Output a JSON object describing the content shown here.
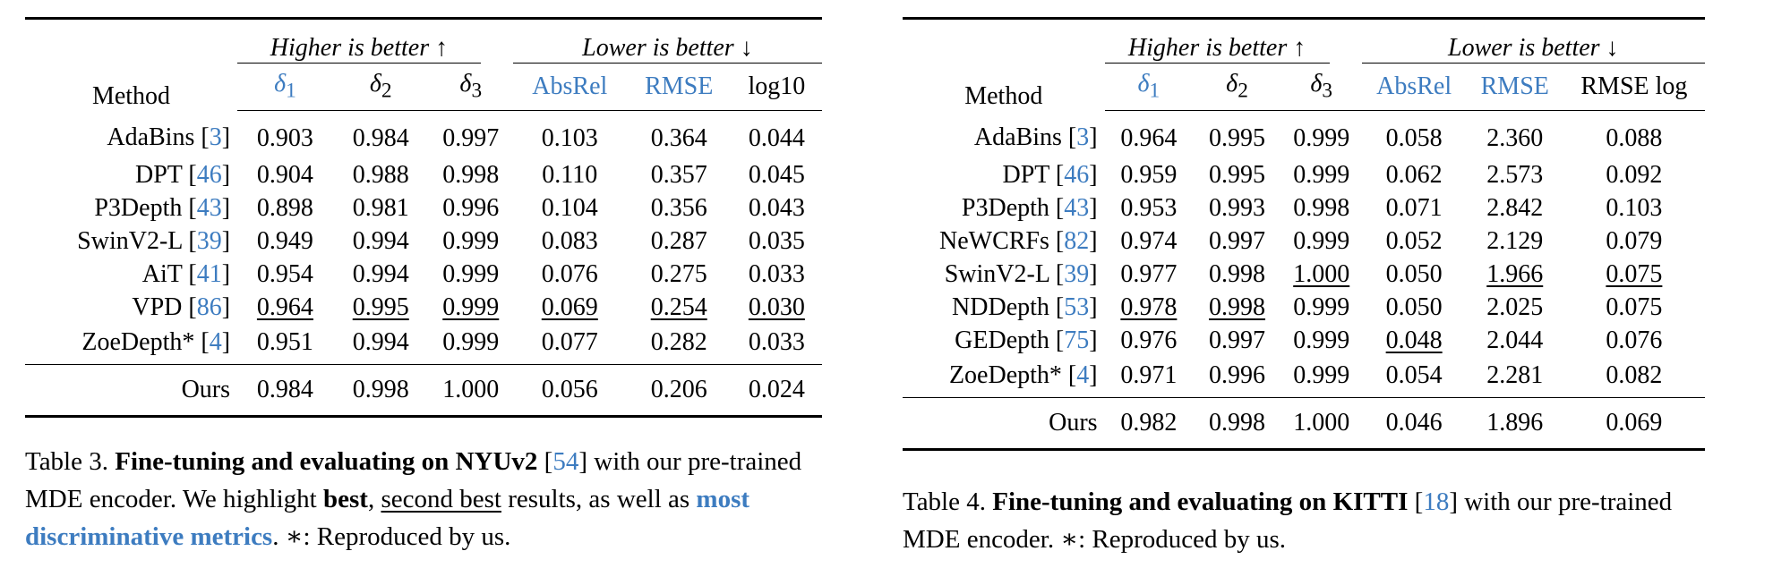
{
  "table3": {
    "method_header": "Method",
    "group_higher": "Higher is better ↑",
    "group_lower": "Lower is better ↓",
    "delta_symbol": "δ",
    "cols": [
      "1",
      "2",
      "3",
      "AbsRel",
      "RMSE",
      "log10"
    ],
    "rows": [
      {
        "name": "AdaBins [",
        "ref": "3",
        "close": "]",
        "vals": [
          "0.903",
          "0.984",
          "0.997",
          "0.103",
          "0.364",
          "0.044"
        ]
      },
      {
        "name": "DPT [",
        "ref": "46",
        "close": "]",
        "vals": [
          "0.904",
          "0.988",
          "0.998",
          "0.110",
          "0.357",
          "0.045"
        ]
      },
      {
        "name": "P3Depth [",
        "ref": "43",
        "close": "]",
        "vals": [
          "0.898",
          "0.981",
          "0.996",
          "0.104",
          "0.356",
          "0.043"
        ]
      },
      {
        "name": "SwinV2-L [",
        "ref": "39",
        "close": "]",
        "vals": [
          "0.949",
          "0.994",
          "0.999",
          "0.083",
          "0.287",
          "0.035"
        ]
      },
      {
        "name": "AiT [",
        "ref": "41",
        "close": "]",
        "vals": [
          "0.954",
          "0.994",
          "0.999",
          "0.076",
          "0.275",
          "0.033"
        ]
      },
      {
        "name": "VPD [",
        "ref": "86",
        "close": "]",
        "vals": [
          "0.964",
          "0.995",
          "0.999",
          "0.069",
          "0.254",
          "0.030"
        ]
      },
      {
        "name": "ZoeDepth* [",
        "ref": "4",
        "close": "]",
        "vals": [
          "0.951",
          "0.994",
          "0.999",
          "0.077",
          "0.282",
          "0.033"
        ]
      }
    ],
    "ours": {
      "name": "Ours",
      "vals": [
        "0.984",
        "0.998",
        "1.000",
        "0.056",
        "0.206",
        "0.024"
      ]
    },
    "caption": {
      "label": "Table 3.",
      "bold_title": "Fine-tuning and evaluating on NYUv2",
      "ref_open": " [",
      "ref": "54",
      "ref_close": "]",
      "text1": " with our pre-trained MDE encoder. We highlight ",
      "best": "best",
      "comma": ", ",
      "second": "second best",
      "text2": " results, as well as ",
      "discrim": "most discriminative metrics",
      "text3": ". ∗: Reproduced by us."
    }
  },
  "table4": {
    "method_header": "Method",
    "group_higher": "Higher is better ↑",
    "group_lower": "Lower is better ↓",
    "delta_symbol": "δ",
    "cols": [
      "1",
      "2",
      "3",
      "AbsRel",
      "RMSE",
      "RMSE log"
    ],
    "rows": [
      {
        "name": "AdaBins [",
        "ref": "3",
        "close": "]",
        "vals": [
          "0.964",
          "0.995",
          "0.999",
          "0.058",
          "2.360",
          "0.088"
        ]
      },
      {
        "name": "DPT [",
        "ref": "46",
        "close": "]",
        "vals": [
          "0.959",
          "0.995",
          "0.999",
          "0.062",
          "2.573",
          "0.092"
        ]
      },
      {
        "name": "P3Depth [",
        "ref": "43",
        "close": "]",
        "vals": [
          "0.953",
          "0.993",
          "0.998",
          "0.071",
          "2.842",
          "0.103"
        ]
      },
      {
        "name": "NeWCRFs [",
        "ref": "82",
        "close": "]",
        "vals": [
          "0.974",
          "0.997",
          "0.999",
          "0.052",
          "2.129",
          "0.079"
        ]
      },
      {
        "name": "SwinV2-L [",
        "ref": "39",
        "close": "]",
        "vals": [
          "0.977",
          "0.998",
          "1.000",
          "0.050",
          "1.966",
          "0.075"
        ]
      },
      {
        "name": "NDDepth [",
        "ref": "53",
        "close": "]",
        "vals": [
          "0.978",
          "0.998",
          "0.999",
          "0.050",
          "2.025",
          "0.075"
        ]
      },
      {
        "name": "GEDepth [",
        "ref": "75",
        "close": "]",
        "vals": [
          "0.976",
          "0.997",
          "0.999",
          "0.048",
          "2.044",
          "0.076"
        ]
      },
      {
        "name": "ZoeDepth* [",
        "ref": "4",
        "close": "]",
        "vals": [
          "0.971",
          "0.996",
          "0.999",
          "0.054",
          "2.281",
          "0.082"
        ]
      }
    ],
    "ours": {
      "name": "Ours",
      "vals": [
        "0.982",
        "0.998",
        "1.000",
        "0.046",
        "1.896",
        "0.069"
      ]
    },
    "caption": {
      "label": "Table 4.",
      "bold_title": "Fine-tuning and evaluating on KITTI",
      "ref_open": " [",
      "ref": "18",
      "ref_close": "]",
      "text1": " with our pre-trained MDE encoder. ∗: Reproduced by us."
    }
  },
  "colors": {
    "accent_blue": "#3d7cc0",
    "text": "#000000"
  }
}
